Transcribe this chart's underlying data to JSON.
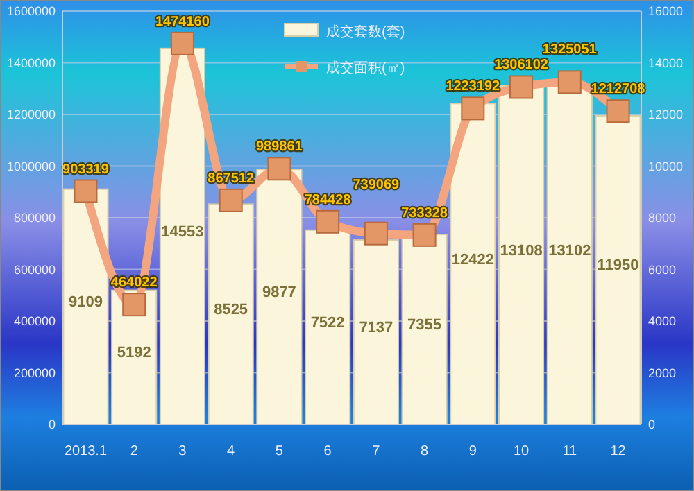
{
  "chart_data": {
    "type": "bar",
    "categories": [
      "2013.1",
      "2",
      "3",
      "4",
      "5",
      "6",
      "7",
      "8",
      "9",
      "10",
      "11",
      "12"
    ],
    "series": [
      {
        "name": "成交套数(套)",
        "axis": "y2",
        "color": "#fbf5dc",
        "values": [
          9109,
          5192,
          14553,
          8525,
          9877,
          7522,
          7137,
          7355,
          12422,
          13108,
          13102,
          11950
        ]
      },
      {
        "name": "成交面积(㎡)",
        "type": "line",
        "axis": "y",
        "color": "#f2a57e",
        "marker": "square",
        "values": [
          903319,
          464022,
          1474160,
          867512,
          989861,
          784428,
          739069,
          733328,
          1223192,
          1306102,
          1325051,
          1212708
        ]
      }
    ],
    "ylim": [
      0,
      1600000
    ],
    "yticks": [
      0,
      200000,
      400000,
      600000,
      800000,
      1000000,
      1200000,
      1400000,
      1600000
    ],
    "y2lim": [
      0,
      16000
    ],
    "y2ticks": [
      0,
      2000,
      4000,
      6000,
      8000,
      10000,
      12000,
      14000,
      16000
    ],
    "grid": "y",
    "legend": "top right",
    "data_labels": true
  }
}
